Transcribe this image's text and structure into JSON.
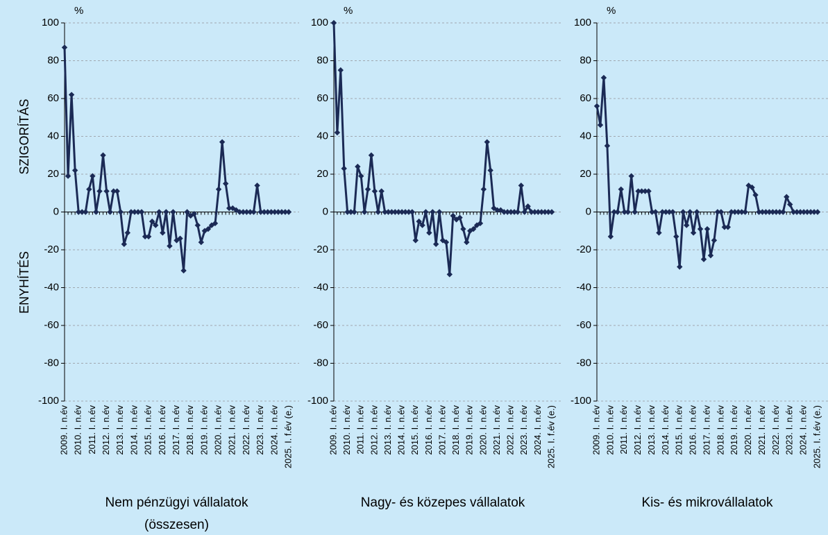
{
  "chart_data": [
    {
      "type": "line",
      "title_lines": [
        "Nem pénzügyi vállalatok",
        "(összesen)"
      ],
      "unit": "%",
      "y_label_top": "SZIGORÍTÁS",
      "y_label_bottom": "ENYHÍTÉS",
      "categories": [
        "2009. I. n.év",
        null,
        null,
        null,
        "2010. I. n.év",
        null,
        null,
        null,
        "2011. I. n.év",
        null,
        null,
        null,
        "2012. I. n.év",
        null,
        null,
        null,
        "2013. I. n.év",
        null,
        null,
        null,
        "2014. I. n.év",
        null,
        null,
        null,
        "2015. I. n.év",
        null,
        null,
        null,
        "2016. I. n.év",
        null,
        null,
        null,
        "2017. I. n.év",
        null,
        null,
        null,
        "2018. I. n.év",
        null,
        null,
        null,
        "2019. I. n.év",
        null,
        null,
        null,
        "2020. I. n.év",
        null,
        null,
        null,
        "2021. I. n.év",
        null,
        null,
        null,
        "2022. I. n.év",
        null,
        null,
        null,
        "2023. I. n.év",
        null,
        null,
        null,
        "2024. I. n.év",
        null,
        null,
        null,
        "2025. I. f.év (e.)"
      ],
      "values": [
        87,
        19,
        62,
        22,
        0,
        0,
        0,
        12,
        19,
        0,
        11,
        30,
        11,
        0,
        11,
        11,
        0,
        -17,
        -11,
        0,
        0,
        0,
        0,
        -13,
        -13,
        -5,
        -7,
        0,
        -11,
        0,
        -18,
        0,
        -15,
        -14,
        -31,
        0,
        -2,
        -1,
        -7,
        -16,
        -10,
        -9,
        -7,
        -6,
        12,
        37,
        15,
        2,
        2,
        1,
        0,
        0,
        0,
        0,
        0,
        14,
        0,
        0,
        0,
        0,
        0,
        0,
        0,
        0,
        0
      ],
      "color": "#1b2a55",
      "ylim": [
        -100,
        100
      ],
      "yticks": [
        100,
        80,
        60,
        40,
        20,
        0,
        -20,
        -40,
        -60,
        -80,
        -100
      ],
      "grid": true
    },
    {
      "type": "line",
      "title_lines": [
        "Nagy- és közepes vállalatok"
      ],
      "unit": "%",
      "categories": [
        "2009. I. n.év",
        null,
        null,
        null,
        "2010. I. n.év",
        null,
        null,
        null,
        "2011. I. n.év",
        null,
        null,
        null,
        "2012. I. n.év",
        null,
        null,
        null,
        "2013. I. n.év",
        null,
        null,
        null,
        "2014. I. n.év",
        null,
        null,
        null,
        "2015. I. n.év",
        null,
        null,
        null,
        "2016. I. n.év",
        null,
        null,
        null,
        "2017. I. n.év",
        null,
        null,
        null,
        "2018. I. n.év",
        null,
        null,
        null,
        "2019. I. n.év",
        null,
        null,
        null,
        "2020. I. n.év",
        null,
        null,
        null,
        "2021. I. n.év",
        null,
        null,
        null,
        "2022. I. n.év",
        null,
        null,
        null,
        "2023. I. n.év",
        null,
        null,
        null,
        "2024. I. n.év",
        null,
        null,
        null,
        "2025. I. f.év (e.)"
      ],
      "values": [
        100,
        42,
        75,
        23,
        0,
        0,
        0,
        24,
        19,
        0,
        12,
        30,
        11,
        0,
        11,
        0,
        0,
        0,
        0,
        0,
        0,
        0,
        0,
        0,
        -15,
        -5,
        -7,
        0,
        -11,
        0,
        -17,
        0,
        -15,
        -16,
        -33,
        -2,
        -4,
        -3,
        -9,
        -16,
        -10,
        -9,
        -7,
        -6,
        12,
        37,
        22,
        2,
        1,
        1,
        0,
        0,
        0,
        0,
        0,
        14,
        0,
        3,
        0,
        0,
        0,
        0,
        0,
        0,
        0
      ],
      "color": "#1b2a55",
      "ylim": [
        -100,
        100
      ],
      "yticks": [
        100,
        80,
        60,
        40,
        20,
        0,
        -20,
        -40,
        -60,
        -80,
        -100
      ],
      "grid": true
    },
    {
      "type": "line",
      "title_lines": [
        "Kis- és mikrovállalatok"
      ],
      "unit": "%",
      "categories": [
        "2009. I. n.év",
        null,
        null,
        null,
        "2010. I. n.év",
        null,
        null,
        null,
        "2011. I. n.év",
        null,
        null,
        null,
        "2012. I. n.év",
        null,
        null,
        null,
        "2013. I. n.év",
        null,
        null,
        null,
        "2014. I. n.év",
        null,
        null,
        null,
        "2015. I. n.év",
        null,
        null,
        null,
        "2016. I. n.év",
        null,
        null,
        null,
        "2017. I. n.év",
        null,
        null,
        null,
        "2018. I. n.év",
        null,
        null,
        null,
        "2019. I. n.év",
        null,
        null,
        null,
        "2020. I. n.év",
        null,
        null,
        null,
        "2021. I. n.év",
        null,
        null,
        null,
        "2022. I. n.év",
        null,
        null,
        null,
        "2023. I. n.év",
        null,
        null,
        null,
        "2024. I. n.év",
        null,
        null,
        null,
        "2025. I. f.év (e.)"
      ],
      "values": [
        56,
        46,
        71,
        35,
        -13,
        0,
        0,
        12,
        0,
        0,
        19,
        0,
        11,
        11,
        11,
        11,
        0,
        0,
        -11,
        0,
        0,
        0,
        0,
        -13,
        -29,
        0,
        -7,
        0,
        -11,
        0,
        -9,
        -25,
        -9,
        -23,
        -15,
        0,
        0,
        -8,
        -8,
        0,
        0,
        0,
        0,
        0,
        14,
        13,
        9,
        0,
        0,
        0,
        0,
        0,
        0,
        0,
        0,
        8,
        4,
        0,
        0,
        0,
        0,
        0,
        0,
        0,
        0
      ],
      "color": "#1b2a55",
      "ylim": [
        -100,
        100
      ],
      "yticks": [
        100,
        80,
        60,
        40,
        20,
        0,
        -20,
        -40,
        -60,
        -80,
        -100
      ],
      "grid": true
    }
  ]
}
